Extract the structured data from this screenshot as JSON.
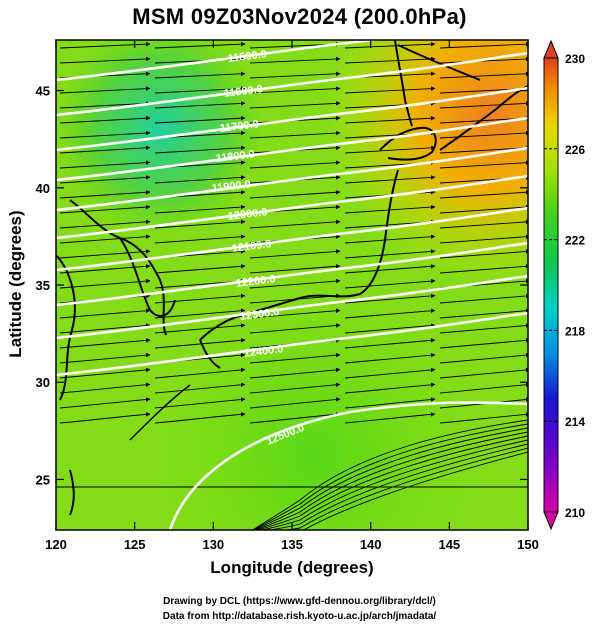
{
  "title": "MSM 09Z03Nov2024 (200.0hPa)",
  "axes": {
    "xlabel": "Longitude (degrees)",
    "ylabel": "Latitude  (degrees)",
    "x_range": [
      120,
      150
    ],
    "y_range": [
      22.4,
      47.6
    ],
    "x_ticks": [
      "120",
      "125",
      "130",
      "135",
      "140",
      "145",
      "150"
    ],
    "y_ticks": [
      "25",
      "30",
      "35",
      "40",
      "45"
    ]
  },
  "colorbar": {
    "ticks": [
      "230",
      "226",
      "222",
      "218",
      "214",
      "210"
    ],
    "range": [
      210,
      230
    ],
    "colors": [
      "#d400a0",
      "#7a00c8",
      "#1a1ad4",
      "#00a0e0",
      "#00d8b8",
      "#10c850",
      "#40d020",
      "#90e000",
      "#d8e800",
      "#f0c000",
      "#f08020",
      "#e04020"
    ]
  },
  "contours": {
    "labels": [
      "11500.0",
      "11600.0",
      "11700.0",
      "11800.0",
      "11900.0",
      "12000.0",
      "12100.0",
      "12200.0",
      "12300.0",
      "12400.0",
      "12500.0"
    ]
  },
  "footer": {
    "line1": "Drawing by DCL (https://www.gfd-dennou.org/library/dcl/)",
    "line2": "Data from http://database.rish.kyoto-u.ac.jp/arch/jmadata/"
  }
}
